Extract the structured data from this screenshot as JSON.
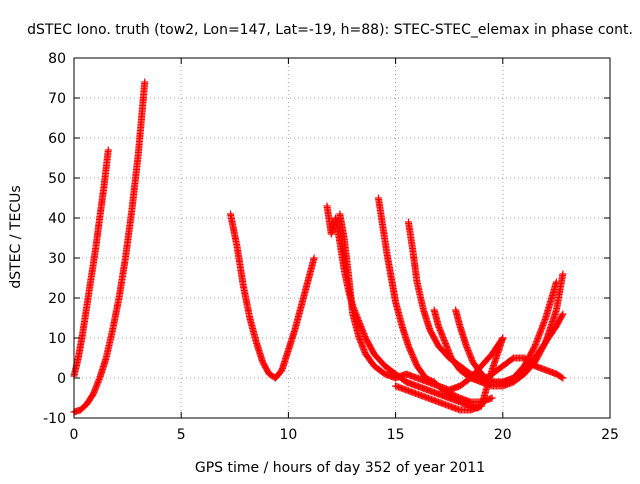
{
  "chart_data": {
    "type": "scatter",
    "title": "dSTEC Iono. truth (tow2, Lon=147, Lat=-19, h=88): STEC-STEC_elemax in phase cont.",
    "xlabel": "GPS time / hours of day 352 of year 2011",
    "ylabel": "dSTEC  / TECUs",
    "xlim": [
      0,
      25
    ],
    "ylim": [
      -10,
      80
    ],
    "x_ticks": [
      0,
      5,
      10,
      15,
      20,
      25
    ],
    "y_ticks": [
      -10,
      0,
      10,
      20,
      30,
      40,
      50,
      60,
      70,
      80
    ],
    "grid": true,
    "marker": "+",
    "color": "#ff0000",
    "series": [
      {
        "x": [
          0.0,
          0.2,
          0.4,
          0.6,
          0.8,
          1.0,
          1.2,
          1.4,
          1.6
        ],
        "y": [
          0.5,
          5,
          11,
          18,
          25,
          32,
          40,
          48,
          57
        ]
      },
      {
        "x": [
          0.0,
          0.3,
          0.6,
          0.9,
          1.2,
          1.5,
          1.8,
          2.1,
          2.4,
          2.7,
          3.0,
          3.3
        ],
        "y": [
          -8.5,
          -8,
          -6.5,
          -4,
          0,
          5,
          12,
          20,
          30,
          42,
          56,
          74
        ]
      },
      {
        "x": [
          7.3,
          7.6,
          7.9,
          8.2,
          8.5,
          8.8,
          9.1,
          9.4,
          9.7,
          10.0,
          10.3,
          10.6,
          10.9,
          11.2
        ],
        "y": [
          41,
          33,
          23,
          15,
          9,
          4,
          1,
          0,
          2,
          7,
          12,
          18,
          24,
          30
        ]
      },
      {
        "x": [
          11.8,
          12.0,
          12.2,
          12.4,
          12.6,
          12.8,
          13.0,
          13.3,
          13.6,
          14.0,
          14.5,
          15.0,
          15.5,
          16.0,
          16.5,
          17.0,
          17.5,
          18.0,
          18.5,
          18.8,
          19.0
        ],
        "y": [
          43,
          36,
          40,
          34,
          27,
          22,
          18,
          14,
          10,
          6,
          3,
          1,
          -1,
          -2,
          -3,
          -4,
          -5,
          -6,
          -7,
          -7.5,
          -7
        ]
      },
      {
        "x": [
          12.4,
          12.6,
          12.8,
          13.0,
          13.3,
          13.6,
          14.0,
          14.5,
          15.0,
          15.5,
          16.0,
          16.5,
          17.0,
          17.5,
          18.0,
          18.5,
          19.0,
          19.5,
          20.0
        ],
        "y": [
          41,
          35,
          26,
          16,
          10,
          6,
          3,
          1,
          0,
          1,
          0,
          -1,
          -2,
          -3,
          -2,
          0,
          3,
          6,
          10
        ]
      },
      {
        "x": [
          14.2,
          14.4,
          14.6,
          14.8,
          15.0,
          15.3,
          15.6,
          16.0,
          16.4,
          16.8,
          17.2,
          17.6,
          18.0,
          18.5,
          19.0,
          19.5
        ],
        "y": [
          45,
          38,
          31,
          25,
          19,
          13,
          8,
          3,
          0,
          -1,
          -3,
          -4,
          -5,
          -6,
          -6,
          -5
        ]
      },
      {
        "x": [
          15.6,
          15.8,
          16.0,
          16.3,
          16.6,
          17.0,
          17.5,
          18.0,
          18.5,
          19.0,
          19.5,
          20.0,
          20.5,
          21.0,
          21.5,
          22.0,
          22.5
        ],
        "y": [
          39,
          32,
          24,
          17,
          12,
          8,
          5,
          3,
          1,
          0,
          -1,
          -1,
          0,
          3,
          8,
          15,
          24
        ]
      },
      {
        "x": [
          16.8,
          17.0,
          17.3,
          17.6,
          18.0,
          18.5,
          19.0,
          19.5,
          20.0,
          20.5,
          21.0,
          21.5,
          22.0,
          22.5,
          22.8
        ],
        "y": [
          17,
          13,
          9,
          5,
          2,
          0,
          -1,
          -2,
          -2,
          -1,
          1,
          4,
          9,
          17,
          26
        ]
      },
      {
        "x": [
          17.8,
          18.0,
          18.3,
          18.6,
          19.0,
          19.5,
          20.0,
          20.5,
          21.0,
          21.5,
          22.0,
          22.5,
          22.8
        ],
        "y": [
          17,
          13,
          8,
          4,
          1,
          -1,
          -1,
          0,
          2,
          5,
          9,
          13,
          16
        ]
      },
      {
        "x": [
          19.0,
          19.5,
          20.0,
          20.5,
          21.0,
          21.5,
          22.0,
          22.5,
          22.8
        ],
        "y": [
          -1,
          1,
          3,
          5,
          5,
          3,
          2,
          1,
          0
        ]
      },
      {
        "x": [
          15.0,
          16.0,
          17.0,
          18.0,
          18.5,
          19.0,
          19.5,
          20.0
        ],
        "y": [
          -2,
          -4,
          -6,
          -8,
          -8,
          -7,
          2,
          10
        ]
      }
    ]
  }
}
